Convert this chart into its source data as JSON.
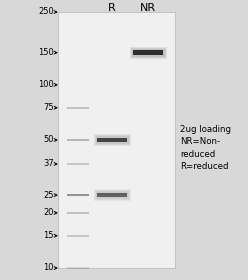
{
  "background_color": "#d8d8d8",
  "gel_color": "#f2f2f2",
  "figsize": [
    2.48,
    2.8
  ],
  "dpi": 100,
  "title_R": "R",
  "title_NR": "NR",
  "marker_labels": [
    "250",
    "150",
    "100",
    "75",
    "50",
    "37",
    "25",
    "20",
    "15",
    "10"
  ],
  "marker_mw": [
    250,
    150,
    100,
    75,
    50,
    37,
    25,
    20,
    15,
    10
  ],
  "ladder_bands_mw": [
    75,
    50,
    37,
    25,
    20,
    15,
    10
  ],
  "ladder_bands_intensity": [
    0.45,
    0.55,
    0.4,
    0.9,
    0.45,
    0.4,
    0.3
  ],
  "R_bands": [
    {
      "mw": 50,
      "intensity": 0.82
    },
    {
      "mw": 25,
      "intensity": 0.65
    }
  ],
  "NR_bands": [
    {
      "mw": 150,
      "intensity": 0.95
    }
  ],
  "annotation_text": "2ug loading\nNR=Non-\nreduced\nR=reduced",
  "annotation_fontsize": 6.2,
  "label_fontsize": 6.0,
  "band_color": "#111111",
  "ladder_color": "#666666"
}
